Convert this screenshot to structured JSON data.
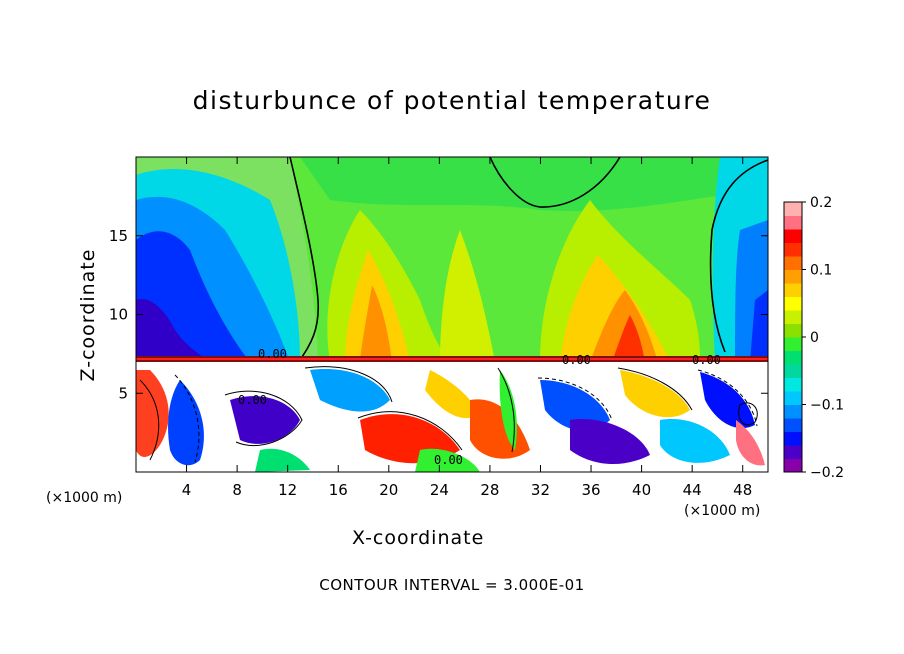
{
  "chart_data": {
    "type": "heatmap",
    "title": "disturbunce of potential temperature",
    "xlabel": "X-coordinate",
    "ylabel": "Z-coordinate",
    "x_unit_label": "(×1000 m)",
    "footer": "CONTOUR INTERVAL = 3.000E-01",
    "xlim": [
      0,
      50
    ],
    "ylim": [
      0,
      20
    ],
    "x_ticks": [
      4,
      8,
      12,
      16,
      20,
      24,
      28,
      32,
      36,
      40,
      44,
      48
    ],
    "y_ticks": [
      5,
      10,
      15
    ],
    "colorbar": {
      "range": [
        -0.2,
        0.2
      ],
      "ticks": [
        0.2,
        0.1,
        0,
        -0.1,
        -0.2
      ],
      "tick_labels": [
        "0.2",
        "0.1",
        "0",
        "−0.1",
        "−0.2"
      ],
      "colors": [
        "#8800aa",
        "#4b00c8",
        "#0010ff",
        "#0050ff",
        "#0090ff",
        "#00c8ff",
        "#00e8e0",
        "#00d8a0",
        "#00e070",
        "#30f030",
        "#8ce000",
        "#c8f000",
        "#ffff00",
        "#ffd000",
        "#ffa000",
        "#ff7000",
        "#ff3000",
        "#ff0000",
        "#ff7080",
        "#ffb0b0"
      ]
    },
    "contour_label": "0.00",
    "contour_interval": "3.000E-01"
  }
}
